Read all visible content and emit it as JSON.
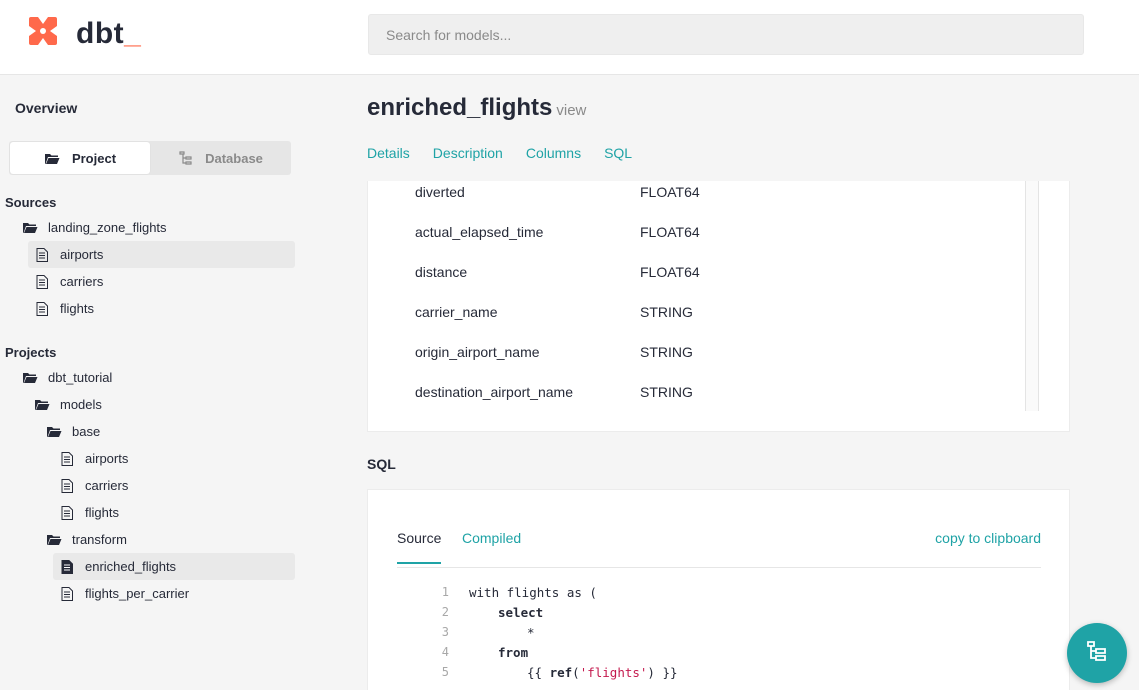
{
  "header": {
    "logo_text": "dbt",
    "logo_underscore": "_",
    "search_placeholder": "Search for models..."
  },
  "sidebar": {
    "overview_label": "Overview",
    "switch": {
      "project_label": "Project",
      "database_label": "Database",
      "active": "Project"
    },
    "sources_title": "Sources",
    "projects_title": "Projects",
    "sources_tree": {
      "folder": "landing_zone_flights",
      "files": [
        "airports",
        "carriers",
        "flights"
      ]
    },
    "projects_tree": {
      "project": "dbt_tutorial",
      "models_folder": "models",
      "base_folder": "base",
      "base_files": [
        "airports",
        "carriers",
        "flights"
      ],
      "transform_folder": "transform",
      "transform_files": [
        "enriched_flights",
        "flights_per_carrier"
      ]
    },
    "selected_item": "enriched_flights",
    "hovered_item": "airports"
  },
  "main": {
    "title": "enriched_flights",
    "kind": "view",
    "tabs": [
      "Details",
      "Description",
      "Columns",
      "SQL"
    ],
    "columns": [
      {
        "name": "diverted",
        "type": "FLOAT64"
      },
      {
        "name": "actual_elapsed_time",
        "type": "FLOAT64"
      },
      {
        "name": "distance",
        "type": "FLOAT64"
      },
      {
        "name": "carrier_name",
        "type": "STRING"
      },
      {
        "name": "origin_airport_name",
        "type": "STRING"
      },
      {
        "name": "destination_airport_name",
        "type": "STRING"
      }
    ],
    "sql_heading": "SQL",
    "sql_tabs": {
      "source": "Source",
      "compiled": "Compiled",
      "active": "Source"
    },
    "copy_label": "copy to clipboard",
    "code": {
      "line_numbers": [
        "1",
        "2",
        "3",
        "4",
        "5"
      ],
      "line1": "with flights as (",
      "line2_kw": "select",
      "line3": "*",
      "line4_kw": "from",
      "line5_open": "{{ ",
      "line5_fn": "ref",
      "line5_paren_open": "(",
      "line5_str": "'flights'",
      "line5_close": ") }}"
    }
  },
  "colors": {
    "accent": "#1fa3a6",
    "brand": "#ff694b",
    "sql_string": "#c41a4e"
  },
  "icons": {
    "logo": "dbt-logo-icon",
    "folder": "folder-icon",
    "file": "file-icon",
    "database": "database-tree-icon",
    "fab": "lineage-graph-icon"
  }
}
